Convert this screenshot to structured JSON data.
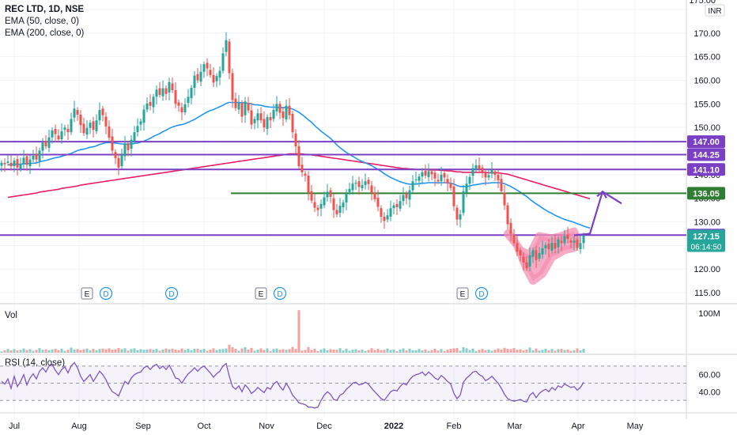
{
  "chart_data": [
    {
      "type": "candlestick",
      "title": "REC LTD, 1D, NSE",
      "indicators": [
        "EMA (50, close, 0)",
        "EMA (200, close, 0)"
      ],
      "currency": "INR",
      "yaxis_ticks": [
        115,
        120,
        125,
        130,
        135,
        140,
        145,
        150,
        155,
        160,
        165,
        170,
        175
      ],
      "ylim": [
        113,
        177
      ],
      "xaxis_labels": [
        "Jul",
        "Aug",
        "Sep",
        "Oct",
        "Nov",
        "Dec",
        "2022",
        "Feb",
        "Mar",
        "Apr",
        "May"
      ],
      "horizontal_levels": [
        {
          "value": 147.0,
          "label": "147.00",
          "color": "#7b3fc6"
        },
        {
          "value": 144.25,
          "label": "144.25",
          "color": "#7b3fc6"
        },
        {
          "value": 141.1,
          "label": "141.10",
          "color": "#7b3fc6"
        },
        {
          "value": 127.2,
          "label": "127.20",
          "color": "#7b3fc6"
        },
        {
          "value": 136.05,
          "label": "136.05",
          "color": "#2e7d32"
        }
      ],
      "last_price": {
        "value": 127.15,
        "label": "127.15",
        "countdown": "06:14:50",
        "color": "#26a69a"
      },
      "event_markers": [
        {
          "month": "Jul",
          "letters": [
            "E",
            "D"
          ]
        },
        {
          "month": "Aug",
          "letters": [
            "D"
          ]
        },
        {
          "month": "Nov",
          "letters": [
            "E",
            "D"
          ]
        },
        {
          "month": "Feb",
          "letters": [
            "E",
            "D"
          ]
        }
      ],
      "closes": [
        142.5,
        142.2,
        142.8,
        141.8,
        143.0,
        141.5,
        142.3,
        143.6,
        142.1,
        143.2,
        144.0,
        143.2,
        145.1,
        146.8,
        146.0,
        147.9,
        149.4,
        148.6,
        147.5,
        149.2,
        150.0,
        149.0,
        151.8,
        154.0,
        152.7,
        150.5,
        148.8,
        149.9,
        151.0,
        149.5,
        151.5,
        153.7,
        152.6,
        150.2,
        147.8,
        145.1,
        143.5,
        141.5,
        144.2,
        146.6,
        145.2,
        147.4,
        149.0,
        150.3,
        151.3,
        153.8,
        155.1,
        154.6,
        156.5,
        158.0,
        156.9,
        158.3,
        157.1,
        159.6,
        157.9,
        155.0,
        154.6,
        153.2,
        154.9,
        156.5,
        158.4,
        161.0,
        160.0,
        161.8,
        163.4,
        162.5,
        161.1,
        159.5,
        160.9,
        162.0,
        165.7,
        168.5,
        161.5,
        155.8,
        154.1,
        155.2,
        152.3,
        155.5,
        153.6,
        150.6,
        151.8,
        153.0,
        151.5,
        150.0,
        152.2,
        151.5,
        153.7,
        155.0,
        153.1,
        152.0,
        154.6,
        152.6,
        149.0,
        146.0,
        141.8,
        140.5,
        139.8,
        136.2,
        134.5,
        133.0,
        132.5,
        133.8,
        135.2,
        136.4,
        135.3,
        132.5,
        131.6,
        133.4,
        134.1,
        136.0,
        137.0,
        138.1,
        138.3,
        137.4,
        137.8,
        138.6,
        138.0,
        136.2,
        134.8,
        133.2,
        131.1,
        130.2,
        131.4,
        132.9,
        133.5,
        133.1,
        134.4,
        135.7,
        135.0,
        136.7,
        138.6,
        139.0,
        139.6,
        140.5,
        139.8,
        140.7,
        140.1,
        139.2,
        138.6,
        140.0,
        139.4,
        138.1,
        137.2,
        133.3,
        130.5,
        131.6,
        136.5,
        138.1,
        139.5,
        141.4,
        142.0,
        141.2,
        140.6,
        139.4,
        139.9,
        141.0,
        140.0,
        138.8,
        136.5,
        133.5,
        129.5,
        127.5,
        125.5,
        123.7,
        122.9,
        121.4,
        120.2,
        122.9,
        124.0,
        121.9,
        123.4,
        124.4,
        125.1,
        124.2,
        125.6,
        124.3,
        126.3,
        125.5,
        127.0,
        126.4,
        125.6,
        126.0,
        124.5,
        125.5,
        127.15
      ],
      "ema50": [
        null,
        null,
        142.1,
        142.1,
        142.2,
        142.2,
        142.2,
        142.3,
        142.3,
        142.4,
        142.4,
        142.5,
        142.7,
        142.9,
        143.0,
        143.2,
        143.4,
        143.6,
        143.7,
        143.9,
        144.1,
        144.3,
        144.5,
        144.8,
        145.1,
        145.3,
        145.4,
        145.6,
        145.8,
        145.9,
        146.1,
        146.4,
        146.6,
        146.8,
        146.8,
        146.8,
        146.7,
        146.6,
        146.5,
        146.5,
        146.5,
        146.5,
        146.6,
        146.7,
        146.9,
        147.1,
        147.4,
        147.7,
        148.1,
        148.4,
        148.7,
        149.1,
        149.4,
        149.8,
        150.1,
        150.3,
        150.5,
        150.6,
        150.8,
        151.1,
        151.4,
        151.7,
        152.1,
        152.5,
        152.9,
        153.3,
        153.6,
        153.8,
        154.1,
        154.4,
        154.7,
        155.1,
        155.3,
        155.3,
        155.3,
        155.3,
        155.2,
        155.2,
        155.1,
        155.0,
        154.8,
        154.8,
        154.7,
        154.5,
        154.4,
        154.3,
        154.3,
        154.3,
        154.2,
        154.2,
        154.2,
        154.1,
        153.9,
        153.6,
        153.2,
        152.7,
        152.2,
        151.6,
        151.1,
        150.4,
        149.8,
        149.2,
        148.7,
        148.2,
        147.7,
        147.0,
        146.3,
        145.7,
        145.2,
        144.7,
        144.3,
        143.9,
        143.5,
        143.1,
        142.8,
        142.5,
        142.2,
        141.9,
        141.5,
        141.1,
        140.7,
        140.2,
        139.8,
        139.4,
        139.1,
        138.8,
        138.5,
        138.3,
        138.1,
        138.0,
        138.0,
        138.0,
        138.1,
        138.2,
        138.2,
        138.3,
        138.3,
        138.3,
        138.3,
        138.3,
        138.3,
        138.3,
        138.2,
        138.0,
        137.7,
        137.5,
        137.5,
        137.5,
        137.6,
        137.8,
        137.9,
        138.0,
        138.1,
        138.2,
        138.2,
        138.3,
        138.3,
        138.3,
        138.3,
        138.1,
        137.8,
        137.5,
        137.1,
        136.7,
        136.3,
        135.8,
        135.4,
        134.8,
        134.3,
        133.8,
        133.4,
        132.9,
        132.5,
        132.1,
        131.8,
        131.4,
        131.1,
        130.8,
        130.5,
        130.3,
        130.1,
        129.9,
        129.6,
        129.4,
        129.1,
        128.9,
        128.7
      ],
      "ema200": [
        null,
        null,
        135.2,
        135.3,
        135.4,
        135.5,
        135.6,
        135.7,
        135.8,
        135.9,
        136.0,
        136.1,
        136.3,
        136.4,
        136.5,
        136.6,
        136.7,
        136.8,
        136.9,
        137.1,
        137.2,
        137.3,
        137.4,
        137.5,
        137.6,
        137.8,
        137.9,
        138.0,
        138.1,
        138.2,
        138.3,
        138.4,
        138.5,
        138.6,
        138.7,
        138.8,
        138.9,
        139.0,
        139.1,
        139.2,
        139.3,
        139.4,
        139.5,
        139.6,
        139.7,
        139.8,
        139.9,
        140.0,
        140.1,
        140.2,
        140.3,
        140.4,
        140.5,
        140.6,
        140.7,
        140.8,
        140.9,
        141.0,
        141.1,
        141.2,
        141.3,
        141.4,
        141.5,
        141.6,
        141.7,
        141.8,
        141.9,
        142.0,
        142.1,
        142.2,
        142.3,
        142.4,
        142.5,
        142.6,
        142.7,
        142.8,
        142.9,
        143.0,
        143.1,
        143.2,
        143.3,
        143.4,
        143.5,
        143.6,
        143.7,
        143.8,
        143.9,
        144.0,
        144.1,
        144.2,
        144.3,
        144.4,
        144.4,
        144.4,
        144.4,
        144.4,
        144.3,
        144.3,
        144.2,
        144.1,
        144.0,
        143.9,
        143.8,
        143.7,
        143.6,
        143.5,
        143.4,
        143.3,
        143.2,
        143.1,
        143.0,
        142.9,
        142.8,
        142.7,
        142.6,
        142.5,
        142.4,
        142.3,
        142.2,
        142.1,
        142.0,
        141.9,
        141.8,
        141.7,
        141.6,
        141.5,
        141.4,
        141.3,
        141.3,
        141.2,
        141.2,
        141.1,
        141.1,
        141.1,
        141.1,
        141.0,
        141.0,
        141.0,
        141.0,
        140.9,
        140.9,
        140.8,
        140.8,
        140.7,
        140.6,
        140.6,
        140.5,
        140.5,
        140.5,
        140.5,
        140.5,
        140.5,
        140.5,
        140.5,
        140.4,
        140.4,
        140.4,
        140.4,
        140.3,
        140.2,
        140.1,
        139.9,
        139.7,
        139.5,
        139.3,
        139.1,
        138.9,
        138.7,
        138.5,
        138.3,
        138.1,
        137.9,
        137.7,
        137.5,
        137.3,
        137.1,
        136.9,
        136.7,
        136.5,
        136.3,
        136.1,
        135.9,
        135.7,
        135.5,
        135.3,
        135.1,
        134.9
      ],
      "projection_path": [
        [
          181,
          127.15
        ],
        [
          186,
          127.5
        ],
        [
          190,
          136.4
        ],
        [
          196,
          133.9
        ]
      ]
    },
    {
      "type": "bar",
      "title": "Vol",
      "yaxis_ticks": [
        "100M"
      ],
      "ylim": [
        0,
        100
      ],
      "spike_index": 94,
      "spike_value": 98
    },
    {
      "type": "line",
      "title": "RSI (14, close)",
      "yaxis_ticks": [
        40,
        60
      ],
      "band": [
        30,
        70
      ],
      "values": [
        52,
        49,
        55,
        44,
        58,
        46,
        52,
        60,
        48,
        56,
        61,
        55,
        64,
        68,
        63,
        70,
        72,
        65,
        60,
        66,
        69,
        62,
        70,
        74,
        68,
        58,
        52,
        56,
        60,
        52,
        58,
        64,
        60,
        54,
        46,
        40,
        38,
        35,
        44,
        52,
        49,
        56,
        60,
        62,
        63,
        68,
        70,
        66,
        70,
        72,
        67,
        70,
        66,
        71,
        64,
        56,
        55,
        50,
        56,
        61,
        64,
        68,
        64,
        68,
        70,
        66,
        62,
        57,
        61,
        64,
        70,
        73,
        58,
        46,
        43,
        47,
        40,
        48,
        44,
        38,
        41,
        45,
        42,
        39,
        45,
        43,
        49,
        52,
        46,
        42,
        50,
        44,
        36,
        32,
        27,
        26,
        25,
        22,
        22,
        21,
        22,
        30,
        36,
        40,
        37,
        31,
        30,
        36,
        38,
        43,
        46,
        50,
        51,
        48,
        49,
        51,
        49,
        44,
        40,
        36,
        32,
        30,
        35,
        40,
        42,
        41,
        46,
        50,
        48,
        54,
        58,
        60,
        61,
        63,
        59,
        63,
        60,
        56,
        54,
        59,
        56,
        52,
        49,
        38,
        32,
        36,
        51,
        56,
        59,
        63,
        64,
        60,
        58,
        53,
        55,
        58,
        54,
        50,
        44,
        37,
        32,
        30,
        29,
        30,
        31,
        29,
        28,
        36,
        39,
        33,
        38,
        41,
        43,
        40,
        45,
        42,
        47,
        45,
        49,
        47,
        45,
        46,
        42,
        45,
        51
      ]
    }
  ]
}
